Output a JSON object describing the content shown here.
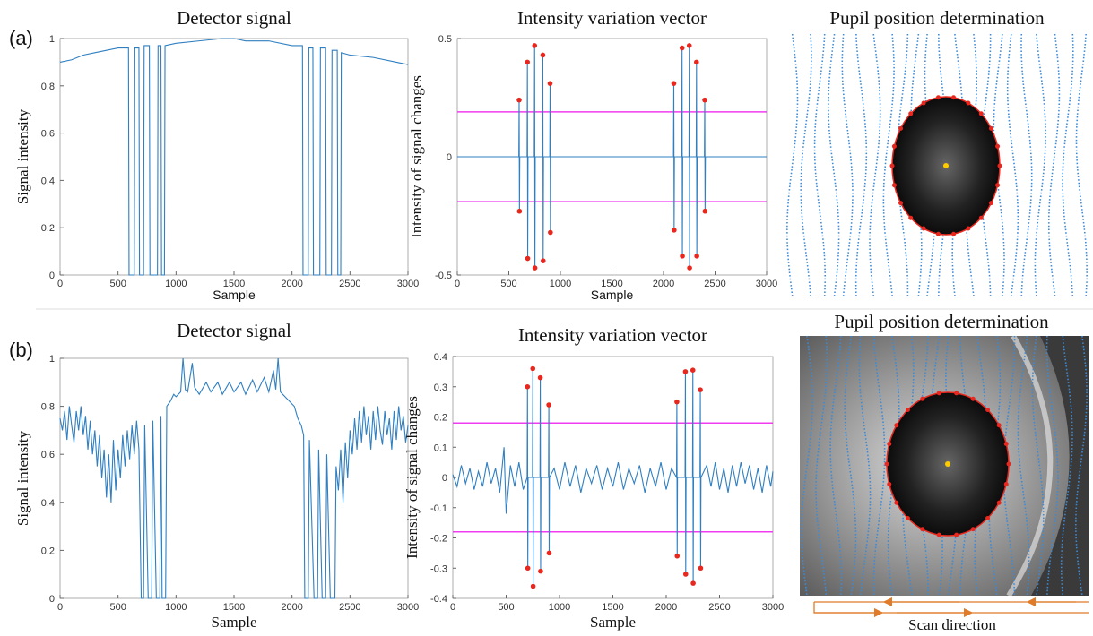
{
  "panel_labels": [
    "(a)",
    "(b)"
  ],
  "chart_data": [
    {
      "type": "line",
      "title": "Detector signal",
      "x_label": "Sample",
      "y_label": "Signal intensity",
      "xlim": [
        0,
        3000
      ],
      "xticks": [
        0,
        500,
        1000,
        1500,
        2000,
        2500,
        3000
      ],
      "ylim": [
        0,
        1
      ],
      "yticks": [
        0,
        0.2,
        0.4,
        0.6,
        0.8,
        1
      ],
      "series": [
        {
          "color": "#2f7fc1",
          "x": [
            0,
            100,
            200,
            300,
            400,
            500,
            590,
            595,
            640,
            645,
            680,
            685,
            720,
            725,
            770,
            775,
            840,
            845,
            870,
            875,
            900,
            905,
            1000,
            1200,
            1400,
            1500,
            1600,
            1800,
            2000,
            2090,
            2095,
            2140,
            2145,
            2180,
            2185,
            2240,
            2245,
            2290,
            2295,
            2340,
            2345,
            2390,
            2395,
            2420,
            2425,
            2500,
            2700,
            2900,
            3000
          ],
          "values": [
            0.9,
            0.91,
            0.93,
            0.94,
            0.95,
            0.96,
            0.96,
            0,
            0,
            0.96,
            0.96,
            0,
            0,
            0.97,
            0.97,
            0,
            0,
            0.97,
            0.97,
            0,
            0,
            0.97,
            0.98,
            0.99,
            1.0,
            1.0,
            0.99,
            0.99,
            0.97,
            0.97,
            0,
            0,
            0.96,
            0.96,
            0,
            0,
            0.96,
            0.96,
            0,
            0,
            0.95,
            0.95,
            0,
            0,
            0.94,
            0.93,
            0.92,
            0.9,
            0.89
          ]
        }
      ]
    },
    {
      "type": "line",
      "title": "Intensity variation vector",
      "x_label": "Sample",
      "y_label": "Intensity of signal changes",
      "xlim": [
        0,
        3000
      ],
      "xticks": [
        0,
        500,
        1000,
        1500,
        2000,
        2500,
        3000
      ],
      "ylim": [
        -0.5,
        0.5
      ],
      "yticks": [
        -0.5,
        0,
        0.5
      ],
      "thresholds": [
        0.19,
        -0.19
      ],
      "threshold_color": "#f03cf0",
      "series": [
        {
          "color": "#2f7fc1",
          "x": [
            0,
            597,
            600,
            603,
            606,
            677,
            680,
            683,
            686,
            747,
            750,
            753,
            756,
            827,
            830,
            833,
            836,
            897,
            900,
            903,
            906,
            1000,
            2000,
            2097,
            2100,
            2103,
            2106,
            2177,
            2180,
            2183,
            2186,
            2247,
            2250,
            2253,
            2256,
            2317,
            2320,
            2323,
            2326,
            2397,
            2400,
            2403,
            2406,
            3000
          ],
          "values": [
            0,
            0,
            0.24,
            -0.23,
            0,
            0,
            0.4,
            -0.43,
            0,
            0,
            0.47,
            -0.47,
            0,
            0,
            0.43,
            -0.44,
            0,
            0,
            0.31,
            -0.32,
            0,
            0,
            0,
            0,
            0.31,
            -0.31,
            0,
            0,
            0.46,
            -0.42,
            0,
            0,
            0.47,
            -0.47,
            0,
            0,
            0.4,
            -0.42,
            0,
            0,
            0.24,
            -0.23,
            0,
            0
          ]
        },
        {
          "color": "#e8281e",
          "style": "points",
          "x": [
            600,
            680,
            750,
            830,
            900,
            2100,
            2180,
            2250,
            2320,
            2400,
            603,
            683,
            753,
            833,
            903,
            2103,
            2183,
            2253,
            2323,
            2403
          ],
          "values": [
            0.24,
            0.4,
            0.47,
            0.43,
            0.31,
            0.31,
            0.46,
            0.47,
            0.4,
            0.24,
            -0.23,
            -0.43,
            -0.47,
            -0.44,
            -0.32,
            -0.31,
            -0.42,
            -0.47,
            -0.42,
            -0.23
          ]
        }
      ]
    },
    {
      "type": "line",
      "title": "Detector signal",
      "x_label": "Sample",
      "y_label": "Signal intensity",
      "xlim": [
        0,
        3000
      ],
      "xticks": [
        0,
        500,
        1000,
        1500,
        2000,
        2500,
        3000
      ],
      "ylim": [
        0,
        1
      ],
      "yticks": [
        0,
        0.2,
        0.4,
        0.6,
        0.8,
        1
      ],
      "series": [
        {
          "color": "#2f7fc1",
          "x": [
            0,
            20,
            40,
            60,
            80,
            100,
            120,
            140,
            160,
            180,
            200,
            220,
            240,
            260,
            280,
            300,
            320,
            340,
            360,
            380,
            400,
            420,
            440,
            460,
            480,
            500,
            520,
            540,
            560,
            580,
            600,
            620,
            640,
            660,
            680,
            700,
            720,
            730,
            760,
            790,
            800,
            830,
            860,
            870,
            880,
            910,
            920,
            950,
            980,
            1000,
            1040,
            1060,
            1080,
            1100,
            1140,
            1160,
            1200,
            1260,
            1300,
            1360,
            1400,
            1460,
            1500,
            1560,
            1600,
            1660,
            1700,
            1760,
            1800,
            1840,
            1860,
            1880,
            1900,
            1940,
            1980,
            2020,
            2050,
            2080,
            2100,
            2110,
            2140,
            2150,
            2190,
            2220,
            2230,
            2260,
            2290,
            2300,
            2330,
            2370,
            2380,
            2400,
            2420,
            2440,
            2460,
            2480,
            2500,
            2520,
            2540,
            2560,
            2580,
            2600,
            2620,
            2640,
            2660,
            2680,
            2700,
            2720,
            2740,
            2760,
            2780,
            2800,
            2820,
            2840,
            2860,
            2880,
            2900,
            2920,
            2940,
            2960,
            2980,
            3000
          ],
          "values": [
            0.75,
            0.7,
            0.78,
            0.66,
            0.8,
            0.72,
            0.65,
            0.78,
            0.7,
            0.8,
            0.68,
            0.76,
            0.62,
            0.74,
            0.6,
            0.7,
            0.55,
            0.68,
            0.5,
            0.62,
            0.42,
            0.6,
            0.4,
            0.66,
            0.45,
            0.62,
            0.5,
            0.68,
            0.55,
            0.7,
            0.58,
            0.72,
            0.6,
            0.74,
            0.62,
            0,
            0,
            0.72,
            0,
            0,
            0.74,
            0,
            0,
            0.76,
            0,
            0,
            0.8,
            0.82,
            0.85,
            0.84,
            0.86,
            1.0,
            0.87,
            0.86,
            0.98,
            0.88,
            0.85,
            0.9,
            0.86,
            0.9,
            0.85,
            0.9,
            0.86,
            0.9,
            0.85,
            0.91,
            0.86,
            0.92,
            0.86,
            0.95,
            0.87,
            1.0,
            0.86,
            0.84,
            0.82,
            0.8,
            0.75,
            0.72,
            0.68,
            0,
            0,
            0.66,
            0,
            0,
            0.62,
            0,
            0,
            0.6,
            0,
            0,
            0.55,
            0.45,
            0.62,
            0.4,
            0.65,
            0.5,
            0.7,
            0.6,
            0.75,
            0.62,
            0.78,
            0.65,
            0.8,
            0.68,
            0.76,
            0.62,
            0.78,
            0.66,
            0.8,
            0.7,
            0.64,
            0.78,
            0.68,
            0.75,
            0.62,
            0.78,
            0.66,
            0.8,
            0.7,
            0.76,
            0.65,
            0.72
          ]
        }
      ]
    },
    {
      "type": "line",
      "title": "Intensity variation vector",
      "x_label": "Sample",
      "y_label": "Intensity of signal changes",
      "xlim": [
        0,
        3000
      ],
      "xticks": [
        0,
        500,
        1000,
        1500,
        2000,
        2500,
        3000
      ],
      "ylim": [
        -0.4,
        0.4
      ],
      "yticks": [
        -0.4,
        -0.3,
        -0.2,
        -0.1,
        0,
        0.1,
        0.2,
        0.3,
        0.4
      ],
      "thresholds": [
        0.18,
        -0.18
      ],
      "threshold_color": "#f03cf0",
      "series": [
        {
          "color": "#2f7fc1",
          "x": [
            0,
            40,
            80,
            120,
            160,
            200,
            240,
            280,
            320,
            360,
            400,
            440,
            480,
            500,
            540,
            580,
            620,
            660,
            697,
            700,
            703,
            706,
            747,
            750,
            753,
            756,
            817,
            820,
            823,
            826,
            897,
            900,
            903,
            906,
            950,
            1000,
            1050,
            1100,
            1150,
            1200,
            1250,
            1300,
            1350,
            1400,
            1450,
            1500,
            1550,
            1600,
            1650,
            1700,
            1750,
            1800,
            1850,
            1900,
            1950,
            2000,
            2050,
            2097,
            2100,
            2103,
            2106,
            2177,
            2180,
            2183,
            2186,
            2247,
            2250,
            2253,
            2256,
            2317,
            2320,
            2323,
            2326,
            2380,
            2420,
            2460,
            2500,
            2540,
            2580,
            2620,
            2660,
            2700,
            2740,
            2780,
            2820,
            2860,
            2900,
            2940,
            2980,
            3000
          ],
          "values": [
            0.01,
            -0.03,
            0.04,
            -0.02,
            0.03,
            -0.04,
            0.02,
            -0.03,
            0.05,
            -0.02,
            0.03,
            -0.05,
            0.1,
            -0.12,
            0.04,
            -0.03,
            0.05,
            -0.04,
            0,
            0.3,
            -0.3,
            0,
            0,
            0.36,
            -0.36,
            0,
            0,
            0.33,
            -0.31,
            0,
            0,
            0.24,
            -0.25,
            0,
            0.03,
            -0.04,
            0.05,
            -0.03,
            0.04,
            -0.05,
            0.03,
            -0.02,
            0.04,
            -0.04,
            0.03,
            -0.03,
            0.05,
            -0.04,
            0.03,
            -0.02,
            0.04,
            -0.05,
            0.03,
            -0.03,
            0.05,
            -0.04,
            0.03,
            0,
            0.25,
            -0.26,
            0,
            0,
            0.35,
            -0.32,
            0,
            0,
            0.355,
            -0.35,
            0,
            0,
            0.29,
            -0.3,
            0,
            0.04,
            -0.03,
            0.05,
            -0.04,
            0.03,
            -0.05,
            0.04,
            -0.03,
            0.05,
            -0.02,
            0.04,
            -0.04,
            0.03,
            -0.05,
            0.04,
            -0.03,
            0.02
          ]
        },
        {
          "color": "#e8281e",
          "style": "points",
          "x": [
            700,
            750,
            820,
            900,
            2100,
            2180,
            2250,
            2320,
            703,
            753,
            823,
            903,
            2103,
            2183,
            2253,
            2323
          ],
          "values": [
            0.3,
            0.36,
            0.33,
            0.24,
            0.25,
            0.35,
            0.355,
            0.29,
            -0.3,
            -0.36,
            -0.31,
            -0.25,
            -0.26,
            -0.32,
            -0.35,
            -0.3
          ]
        }
      ]
    }
  ],
  "images": [
    {
      "title": "Pupil position determination"
    },
    {
      "title": "Pupil position determination",
      "caption": "Scan direction"
    }
  ]
}
